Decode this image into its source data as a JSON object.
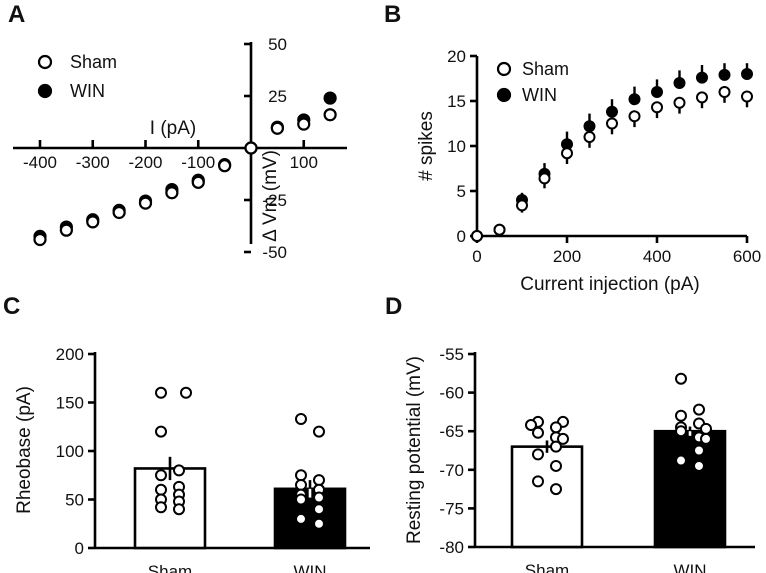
{
  "chart_data": [
    {
      "panel": "A",
      "type": "scatter",
      "title": "",
      "xlabel": "I (pA)",
      "ylabel": "Δ Vm (mV)",
      "xlim": [
        -400,
        150
      ],
      "ylim": [
        -50,
        50
      ],
      "xticks": [
        -400,
        -300,
        -200,
        -100,
        100
      ],
      "xtick_labels": [
        "-400",
        "-300",
        "-200",
        "-100",
        "100"
      ],
      "yticks": [
        -50,
        -25,
        25,
        50
      ],
      "ytick_labels": [
        "-50",
        "-25",
        "25",
        "50"
      ],
      "legend": [
        "Sham",
        "WIN"
      ],
      "series": [
        {
          "name": "Sham",
          "marker": "open-circle",
          "x": [
            -400,
            -350,
            -300,
            -250,
            -200,
            -150,
            -100,
            -50,
            0,
            50,
            100,
            150
          ],
          "y": [
            -44,
            -39.5,
            -35.5,
            -31,
            -26.5,
            -21.5,
            -16.5,
            -8.5,
            0,
            9.5,
            11.5,
            16
          ],
          "err": [
            0,
            0,
            0,
            0,
            0,
            0,
            0,
            0,
            0,
            0,
            0,
            3
          ]
        },
        {
          "name": "WIN",
          "marker": "filled-circle",
          "x": [
            -400,
            -350,
            -300,
            -250,
            -200,
            -150,
            -100,
            -50,
            0,
            50,
            100,
            150
          ],
          "y": [
            -42.5,
            -38,
            -34.5,
            -30,
            -25.5,
            -20,
            -15.5,
            -8,
            0,
            10,
            13.5,
            24
          ],
          "err": [
            0,
            0,
            0,
            0,
            0,
            0,
            0,
            0,
            0,
            0,
            0,
            0
          ]
        }
      ]
    },
    {
      "panel": "B",
      "type": "line",
      "title": "",
      "xlabel": "Current injection (pA)",
      "ylabel": "# spikes",
      "xlim": [
        0,
        600
      ],
      "ylim": [
        0,
        20
      ],
      "xticks": [
        0,
        200,
        400,
        600
      ],
      "xtick_labels": [
        "0",
        "200",
        "400",
        "600"
      ],
      "yticks": [
        0,
        5,
        10,
        15,
        20
      ],
      "ytick_labels": [
        "0",
        "5",
        "10",
        "15",
        "20"
      ],
      "legend": [
        "Sham",
        "WIN"
      ],
      "x": [
        0,
        50,
        100,
        150,
        200,
        250,
        300,
        350,
        400,
        450,
        500,
        550,
        600
      ],
      "series": [
        {
          "name": "Sham",
          "marker": "open-circle",
          "values": [
            0,
            0.7,
            3.4,
            6.4,
            9.2,
            11,
            12.5,
            13.3,
            14.3,
            14.8,
            15.4,
            16,
            15.5
          ],
          "err": [
            0,
            0.3,
            0.8,
            1.1,
            1.2,
            1.2,
            1.2,
            1.2,
            1.2,
            1.2,
            1.2,
            1.2,
            1.2
          ]
        },
        {
          "name": "WIN",
          "marker": "filled-circle",
          "values": [
            0,
            0.7,
            4,
            6.9,
            10.2,
            12.2,
            13.8,
            15.2,
            16,
            17,
            17.6,
            17.9,
            18
          ],
          "err": [
            0,
            0.3,
            0.8,
            1.2,
            1.4,
            1.4,
            1.4,
            1.4,
            1.4,
            1.4,
            1.4,
            1.3,
            1.2
          ]
        }
      ]
    },
    {
      "panel": "C",
      "type": "bar",
      "title": "",
      "xlabel": "",
      "ylabel": "Rheobase (pA)",
      "ylim": [
        0,
        200
      ],
      "yticks": [
        0,
        50,
        100,
        150,
        200
      ],
      "ytick_labels": [
        "0",
        "50",
        "100",
        "150",
        "200"
      ],
      "categories": [
        "Sham",
        "WIN"
      ],
      "values": [
        82,
        61
      ],
      "err": [
        12,
        9
      ],
      "bar_colors": [
        "#ffffff",
        "#000000"
      ],
      "points": [
        [
          160,
          160,
          120,
          80,
          75,
          63,
          60,
          55,
          50,
          48,
          42,
          40
        ],
        [
          133,
          120,
          75,
          70,
          65,
          60,
          55,
          52,
          50,
          40,
          30,
          25
        ]
      ]
    },
    {
      "panel": "D",
      "type": "bar",
      "title": "",
      "xlabel": "",
      "ylabel": "Resting potential (mV)",
      "ylim": [
        -80,
        -55
      ],
      "yticks": [
        -80,
        -75,
        -70,
        -65,
        -60,
        -55
      ],
      "ytick_labels": [
        "-80",
        "-75",
        "-70",
        "-65",
        "-60",
        "-55"
      ],
      "categories": [
        "Sham",
        "WIN"
      ],
      "values": [
        -67,
        -65
      ],
      "err": [
        0.8,
        0.6
      ],
      "bar_colors": [
        "#ffffff",
        "#000000"
      ],
      "points": [
        [
          -63.8,
          -63.8,
          -64.2,
          -64.5,
          -65.2,
          -65.8,
          -66,
          -67,
          -68,
          -69.5,
          -71.5,
          -72.5
        ],
        [
          -58.2,
          -62.2,
          -63,
          -64,
          -64.5,
          -64.7,
          -65,
          -65.8,
          -66,
          -67.5,
          -68.8,
          -69.5
        ]
      ]
    }
  ]
}
